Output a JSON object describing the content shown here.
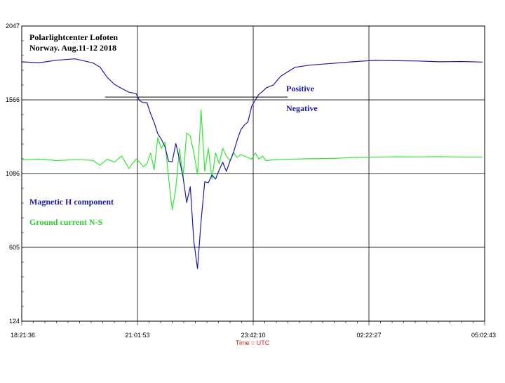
{
  "chart_data": {
    "type": "line",
    "title": "Polarlightcenter Lofoten",
    "subtitle": "Norway. Aug.11-12 2018",
    "xlabel": "Time = UTC",
    "ylabel": "",
    "ylim": [
      124,
      2047
    ],
    "xlim": [
      "18:21:36",
      "05:02:43"
    ],
    "y_ticks": [
      "2047",
      "1566",
      "1086",
      "605",
      "124"
    ],
    "x_ticks": [
      "18:21:36",
      "21:01:53",
      "23:42:10",
      "02:22:27",
      "05:02:43"
    ],
    "grid": true,
    "legend": "left-middle",
    "reference_line": {
      "y": 1584,
      "x_start": "20:17",
      "x_end": "24:30",
      "label_above": "Positive",
      "label_below": "Negative"
    },
    "series": [
      {
        "name": "Magnetic H component",
        "color": "#1a1aa6",
        "x": [
          "18:21",
          "18:45",
          "19:10",
          "19:35",
          "20:00",
          "20:10",
          "20:20",
          "20:30",
          "20:40",
          "20:50",
          "21:00",
          "21:05",
          "21:10",
          "21:15",
          "21:20",
          "21:25",
          "21:30",
          "21:35",
          "21:40",
          "21:45",
          "21:50",
          "21:55",
          "22:00",
          "22:05",
          "22:10",
          "22:15",
          "22:20",
          "22:25",
          "22:30",
          "22:35",
          "22:40",
          "22:45",
          "22:50",
          "22:55",
          "23:00",
          "23:05",
          "23:10",
          "23:15",
          "23:20",
          "23:25",
          "23:30",
          "23:35",
          "23:40",
          "23:45",
          "23:50",
          "23:55",
          "24:00",
          "24:10",
          "24:20",
          "24:40",
          "25:00",
          "25:30",
          "26:00",
          "26:30",
          "27:00",
          "27:30",
          "28:00",
          "28:30",
          "29:00"
        ],
        "y": [
          1814,
          1807,
          1824,
          1833,
          1807,
          1779,
          1712,
          1667,
          1640,
          1616,
          1606,
          1560,
          1548,
          1548,
          1476,
          1418,
          1346,
          1308,
          1260,
          1166,
          1162,
          1282,
          1179,
          1061,
          897,
          1000,
          642,
          466,
          776,
          1032,
          1026,
          1076,
          1050,
          1109,
          1159,
          1100,
          1166,
          1225,
          1304,
          1371,
          1402,
          1423,
          1524,
          1564,
          1602,
          1620,
          1643,
          1663,
          1719,
          1778,
          1792,
          1803,
          1814,
          1823,
          1821,
          1819,
          1814,
          1816,
          1812
        ]
      },
      {
        "name": "Ground current N-S",
        "color": "#33e633",
        "x": [
          "18:21",
          "18:45",
          "19:10",
          "19:35",
          "20:00",
          "20:10",
          "20:20",
          "20:30",
          "20:40",
          "20:50",
          "21:00",
          "21:05",
          "21:10",
          "21:15",
          "21:20",
          "21:25",
          "21:30",
          "21:35",
          "21:40",
          "21:45",
          "21:50",
          "21:55",
          "22:00",
          "22:05",
          "22:10",
          "22:15",
          "22:20",
          "22:25",
          "22:30",
          "22:35",
          "22:40",
          "22:45",
          "22:50",
          "22:55",
          "23:00",
          "23:05",
          "23:10",
          "23:15",
          "23:20",
          "23:25",
          "23:30",
          "23:35",
          "23:40",
          "23:45",
          "23:50",
          "23:55",
          "24:00",
          "24:10",
          "24:20",
          "24:40",
          "25:00",
          "25:30",
          "26:00",
          "26:30",
          "27:00",
          "27:30",
          "28:00",
          "28:30",
          "29:00"
        ],
        "y": [
          1174,
          1180,
          1170,
          1176,
          1172,
          1140,
          1180,
          1160,
          1200,
          1120,
          1180,
          1160,
          1130,
          1150,
          1220,
          1110,
          1320,
          1250,
          1290,
          1060,
          850,
          990,
          1250,
          1060,
          1350,
          1330,
          1220,
          1080,
          1500,
          1100,
          1250,
          1050,
          1220,
          1150,
          1250,
          1200,
          1170,
          1220,
          1190,
          1210,
          1200,
          1190,
          1180,
          1220,
          1180,
          1200,
          1170,
          1175,
          1178,
          1180,
          1182,
          1184,
          1190,
          1192,
          1195,
          1194,
          1196,
          1193,
          1192
        ]
      }
    ]
  }
}
